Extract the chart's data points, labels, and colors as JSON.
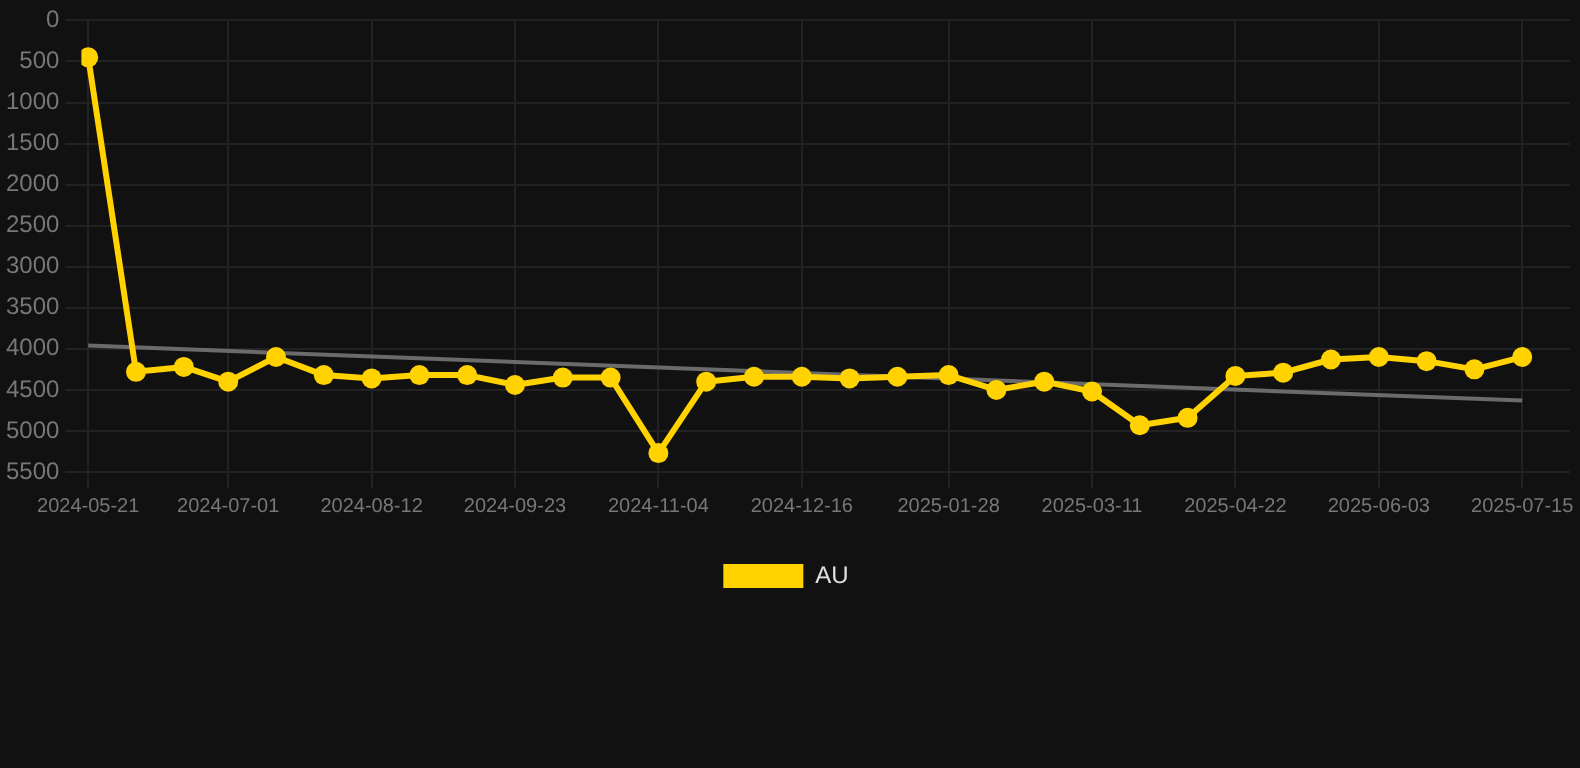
{
  "chart_data": {
    "type": "line",
    "xlim": [
      "2024-05-19",
      "2025-07-29"
    ],
    "xticks": [
      "2024-05-21",
      "2024-07-01",
      "2024-08-12",
      "2024-09-23",
      "2024-11-04",
      "2024-12-16",
      "2025-01-28",
      "2025-03-11",
      "2025-04-22",
      "2025-06-03",
      "2025-07-15"
    ],
    "ylim": [
      5500,
      0
    ],
    "yticks": [
      0,
      500,
      1000,
      1500,
      2000,
      2500,
      3000,
      3500,
      4000,
      4500,
      5000,
      5500
    ],
    "grid": true,
    "legend": "bottom",
    "marker": "circle",
    "line_style": "solid",
    "series": [
      {
        "name": "AU",
        "color": "#ffd200",
        "x": [
          "2024-05-21",
          "2024-06-04",
          "2024-06-18",
          "2024-07-01",
          "2024-07-15",
          "2024-07-29",
          "2024-08-12",
          "2024-08-26",
          "2024-09-09",
          "2024-09-23",
          "2024-10-07",
          "2024-10-21",
          "2024-11-04",
          "2024-11-18",
          "2024-12-02",
          "2024-12-16",
          "2024-12-30",
          "2025-01-13",
          "2025-01-28",
          "2025-02-11",
          "2025-02-25",
          "2025-03-11",
          "2025-03-25",
          "2025-04-08",
          "2025-04-22",
          "2025-05-06",
          "2025-05-20",
          "2025-06-03",
          "2025-06-17",
          "2025-07-01",
          "2025-07-15"
        ],
        "values": [
          450,
          4280,
          4220,
          4400,
          4100,
          4320,
          4360,
          4320,
          4320,
          4440,
          4350,
          4350,
          5270,
          4400,
          4340,
          4340,
          4360,
          4340,
          4320,
          4500,
          4400,
          4520,
          4930,
          4840,
          4330,
          4290,
          4130,
          4100,
          4150,
          4250,
          4100
        ]
      },
      {
        "type": "line",
        "color": "#6b6b6b",
        "marker": "none",
        "x": [
          "2024-05-21",
          "2025-07-15"
        ],
        "values": [
          3960,
          4630
        ]
      }
    ]
  }
}
